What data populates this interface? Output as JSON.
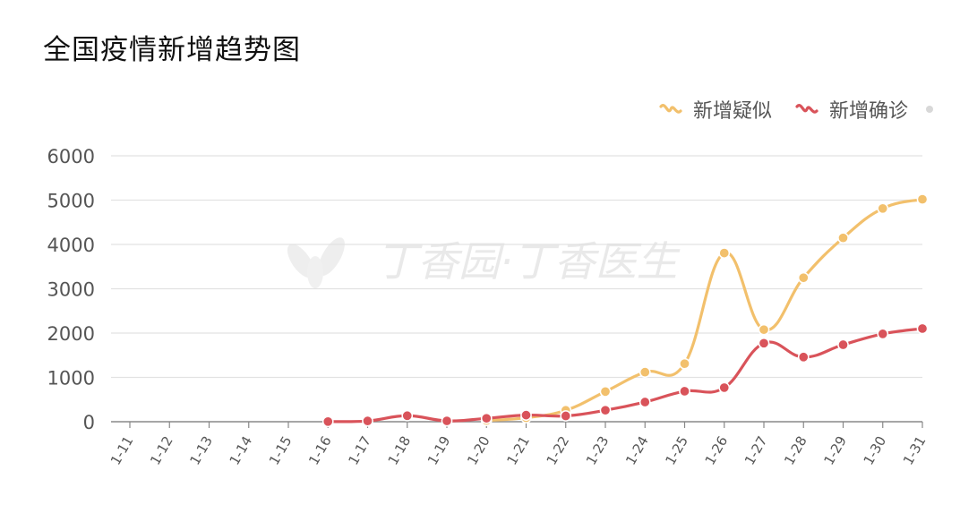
{
  "title": "全国疫情新增趋势图",
  "legend": {
    "suspected_label": "新增疑似",
    "confirmed_label": "新增确诊"
  },
  "watermark_text": "丁香园·丁香医生",
  "colors": {
    "suspected": "#f2c06c",
    "confirmed": "#d9535a",
    "grid": "#e2e2e2",
    "axis": "#888888"
  },
  "chart_data": {
    "type": "line",
    "categories": [
      "1-11",
      "1-12",
      "1-13",
      "1-14",
      "1-15",
      "1-16",
      "1-17",
      "1-18",
      "1-19",
      "1-20",
      "1-21",
      "1-22",
      "1-23",
      "1-24",
      "1-25",
      "1-26",
      "1-27",
      "1-28",
      "1-29",
      "1-30",
      "1-31"
    ],
    "ylim": [
      0,
      6000
    ],
    "yticks": [
      "0",
      "1000",
      "2000",
      "3000",
      "4000",
      "5000",
      "6000"
    ],
    "grid": true,
    "legend_position": "top-right",
    "series": [
      {
        "name": "新增疑似",
        "color": "#f2c06c",
        "values": [
          null,
          null,
          null,
          null,
          null,
          null,
          null,
          null,
          null,
          27,
          90,
          257,
          680,
          1118,
          1309,
          3806,
          2077,
          3248,
          4148,
          4812,
          5019
        ]
      },
      {
        "name": "新增确诊",
        "color": "#d9535a",
        "values": [
          null,
          null,
          null,
          null,
          null,
          4,
          17,
          136,
          19,
          77,
          149,
          131,
          259,
          444,
          688,
          769,
          1771,
          1459,
          1737,
          1982,
          2102
        ]
      }
    ]
  }
}
